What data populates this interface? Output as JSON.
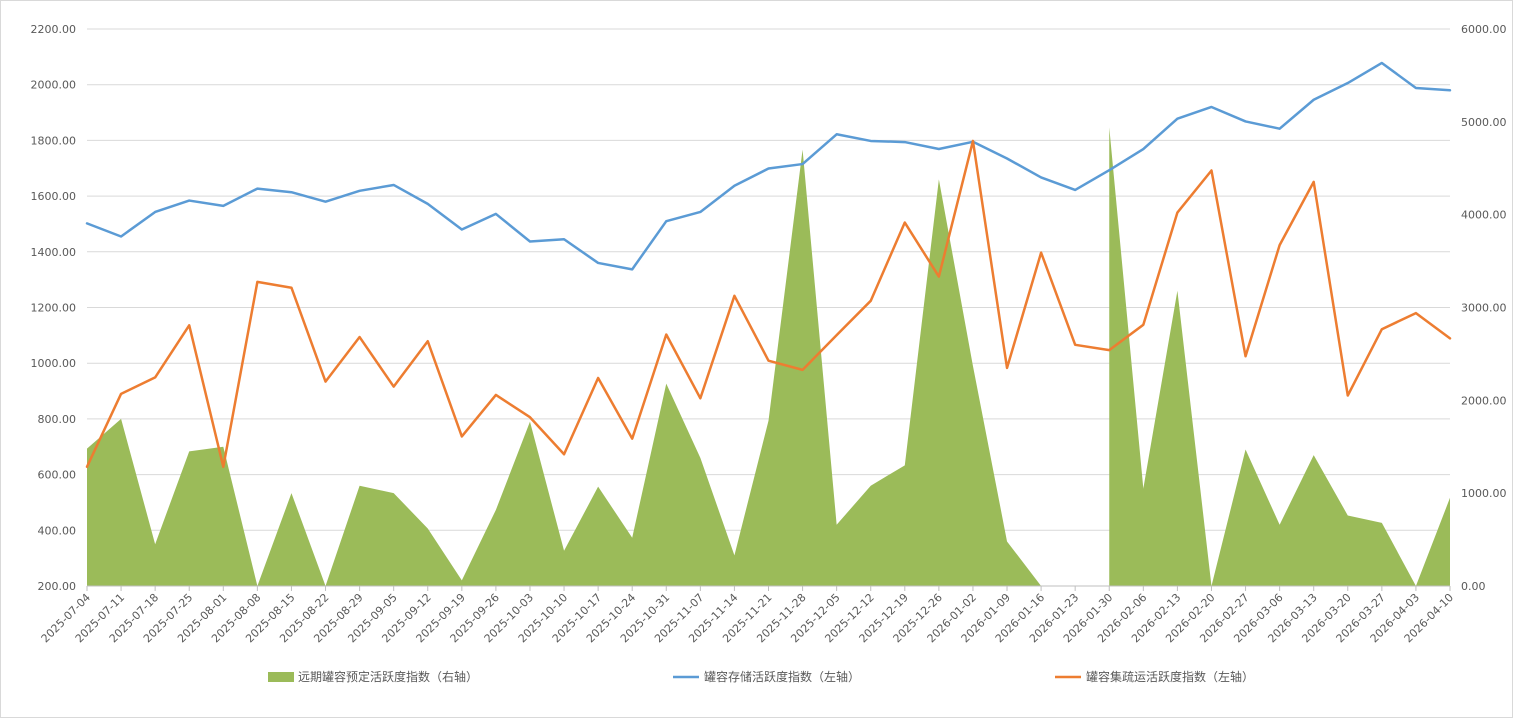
{
  "chart_data": {
    "type": "line",
    "x": [
      "2025-07-04",
      "2025-07-11",
      "2025-07-18",
      "2025-07-25",
      "2025-08-01",
      "2025-08-08",
      "2025-08-15",
      "2025-08-22",
      "2025-08-29",
      "2025-09-05",
      "2025-09-12",
      "2025-09-19",
      "2025-09-26",
      "2025-10-03",
      "2025-10-10",
      "2025-10-17",
      "2025-10-24",
      "2025-10-31",
      "2025-11-07",
      "2025-11-14",
      "2025-11-21",
      "2025-11-28",
      "2025-12-05",
      "2025-12-12",
      "2025-12-19",
      "2025-12-26",
      "2026-01-02",
      "2026-01-09",
      "2026-01-16",
      "2026-01-23",
      "2026-01-30",
      "2026-02-06",
      "2026-02-13",
      "2026-02-20",
      "2026-02-27",
      "2026-03-06",
      "2026-03-13",
      "2026-03-20",
      "2026-03-27",
      "2026-04-03",
      "2026-04-10"
    ],
    "left_axis": {
      "min": 200,
      "max": 2200,
      "step": 200,
      "ticks": [
        "200.00",
        "400.00",
        "600.00",
        "800.00",
        "1000.00",
        "1200.00",
        "1400.00",
        "1600.00",
        "1800.00",
        "2000.00",
        "2200.00"
      ]
    },
    "right_axis": {
      "min": 0,
      "max": 6000,
      "step": 1000,
      "ticks": [
        "0.00",
        "1000.00",
        "2000.00",
        "3000.00",
        "4000.00",
        "5000.00",
        "6000.00"
      ]
    },
    "grid": true,
    "legend_position": "bottom",
    "series": [
      {
        "name": "远期罐容预定活跃度指数（右轴）",
        "kind": "area",
        "axis": "right",
        "color": "#9bbb59",
        "values": [
          1480,
          1800,
          450,
          1450,
          1500,
          0,
          1000,
          0,
          1080,
          1000,
          620,
          60,
          820,
          1770,
          380,
          1070,
          520,
          2180,
          1380,
          330,
          1780,
          4700,
          660,
          1080,
          1300,
          4380,
          2370,
          480,
          0,
          null,
          4940,
          1050,
          3180,
          0,
          1470,
          660,
          1410,
          760,
          680,
          0,
          950
        ]
      },
      {
        "name": "罐容存储活跃度指数（左轴）",
        "kind": "line",
        "axis": "left",
        "color": "#5b9bd5",
        "values": [
          1502,
          1455,
          1543,
          1584,
          1565,
          1627,
          1614,
          1580,
          1619,
          1640,
          1572,
          1480,
          1536,
          1437,
          1445,
          1360,
          1337,
          1510,
          1543,
          1637,
          1699,
          1715,
          1822,
          1798,
          1794,
          1769,
          1795,
          1735,
          1667,
          1622,
          1693,
          1769,
          1878,
          1920,
          1868,
          1842,
          1946,
          2006,
          2078,
          1988,
          1980
        ]
      },
      {
        "name": "罐容集疏运活跃度指数（左轴）",
        "kind": "line",
        "axis": "left",
        "color": "#ed7d31",
        "values": [
          628,
          890,
          949,
          1136,
          628,
          1292,
          1271,
          934,
          1094,
          916,
          1079,
          737,
          886,
          806,
          673,
          947,
          729,
          1103,
          874,
          1242,
          1009,
          976,
          1101,
          1224,
          1505,
          1311,
          1798,
          983,
          1397,
          1066,
          1047,
          1138,
          1541,
          1692,
          1025,
          1424,
          1651,
          884,
          1122,
          1180,
          1089
        ]
      }
    ]
  }
}
